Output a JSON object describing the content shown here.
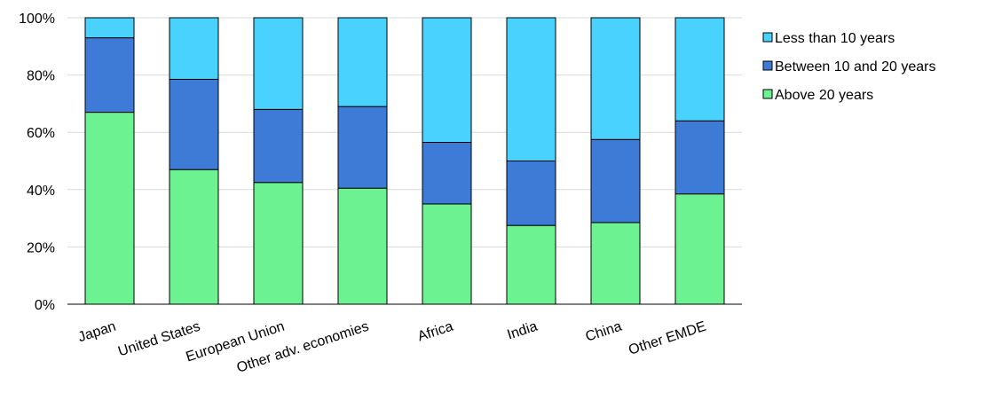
{
  "chart_data": {
    "type": "bar",
    "stacked": true,
    "percent": true,
    "categories": [
      "Japan",
      "United States",
      "European Union",
      "Other adv. economies",
      "Africa",
      "India",
      "China",
      "Other EMDE"
    ],
    "series": [
      {
        "name": "Above 20 years",
        "values": [
          67,
          47,
          42.5,
          40.5,
          35,
          27.5,
          28.5,
          38.5
        ],
        "color": "#6cf291"
      },
      {
        "name": "Between 10 and 20 years",
        "values": [
          26,
          31.5,
          25.5,
          28.5,
          21.5,
          22.5,
          29,
          25.5
        ],
        "color": "#3d7bd6"
      },
      {
        "name": "Less than 10 years",
        "values": [
          7,
          21.5,
          32,
          31,
          43.5,
          50,
          42.5,
          36
        ],
        "color": "#4ad2ff"
      }
    ],
    "legend_order": [
      "Less than 10 years",
      "Between 10 and 20 years",
      "Above 20 years"
    ],
    "ylim": [
      0,
      100
    ],
    "yticks": [
      "0%",
      "20%",
      "40%",
      "60%",
      "80%",
      "100%"
    ],
    "grid": true,
    "legend": "top-right"
  }
}
